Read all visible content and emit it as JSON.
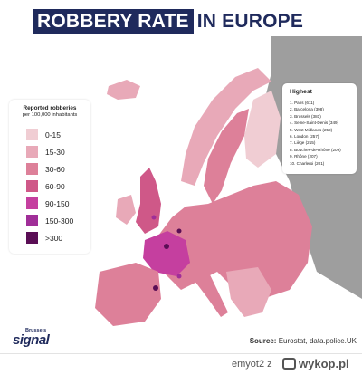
{
  "title": {
    "highlight": "ROBBERY RATE",
    "rest": "IN EUROPE"
  },
  "legend": {
    "title": "Reported robberies",
    "subtitle": "per 100,000 inhabitants",
    "items": [
      {
        "label": "0-15",
        "color": "#f0cdd3"
      },
      {
        "label": "15-30",
        "color": "#e8a9b8"
      },
      {
        "label": "30-60",
        "color": "#dd8099"
      },
      {
        "label": "60-90",
        "color": "#cf5888"
      },
      {
        "label": "90-150",
        "color": "#c53f9f"
      },
      {
        "label": "150-300",
        "color": "#a02e98"
      },
      {
        "label": ">300",
        "color": "#5a0e55"
      }
    ]
  },
  "highest": {
    "title": "Highest",
    "items": [
      "1. Paris (611)",
      "2. Barcelona (398)",
      "3. Brussels (381)",
      "4. Seine-Saint-Denis (349)",
      "5. West Midlands (259)",
      "6. London (257)",
      "7. Liège (215)",
      "8. Bouches-de-Rhône (209)",
      "9. Rhône (207)",
      "10. Charleroi (201)"
    ]
  },
  "source": {
    "label": "Source:",
    "text": "Eurostat, data.police.UK"
  },
  "logo": {
    "top": "Brussels",
    "main": "signal"
  },
  "footer": {
    "user": "emyot2",
    "sep": "z",
    "site": "wykop.pl"
  },
  "colors": {
    "navy": "#1f2a5c",
    "sea": "#ffffff",
    "no_data": "#9e9e9e"
  }
}
